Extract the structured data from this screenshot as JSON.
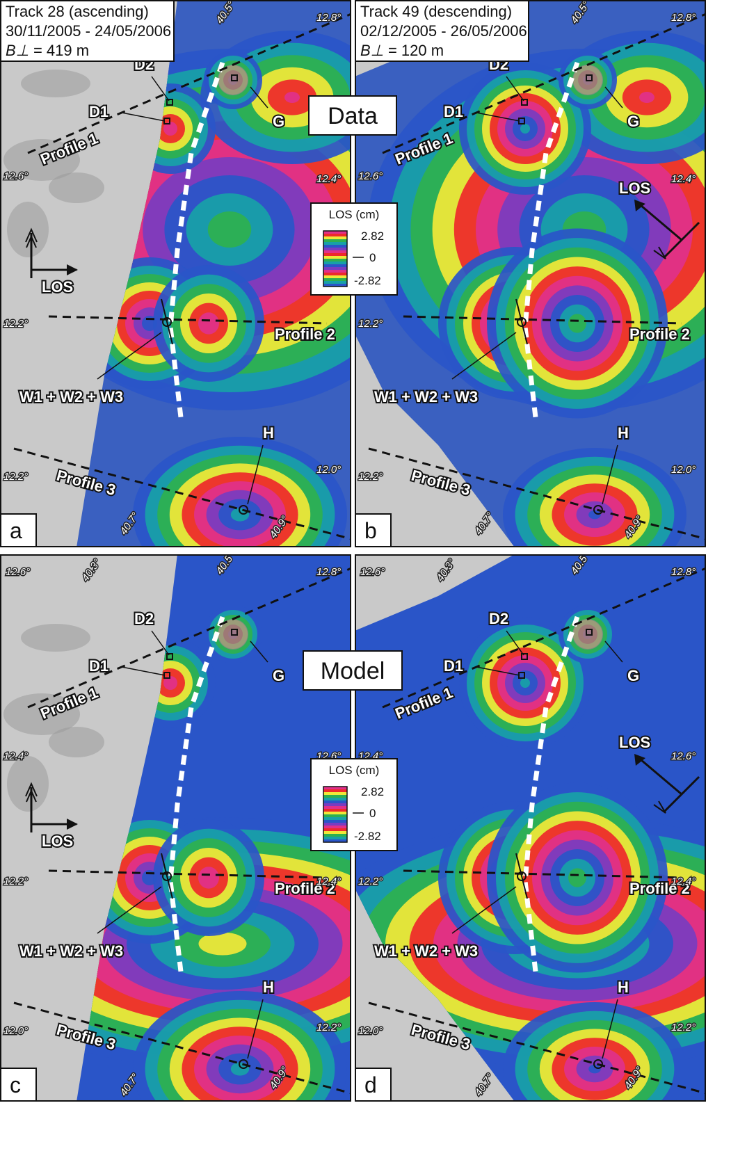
{
  "panels": [
    {
      "id": "a",
      "letter": "a",
      "header_lines": [
        "Track 28 (ascending)",
        "30/11/2005 - 24/05/2006",
        "= 419 m"
      ],
      "baseline_symbol": "B⊥",
      "center_label": "",
      "los_orientation": "ascending",
      "labels": {
        "d1": "D1",
        "d2": "D2",
        "g": "G",
        "h": "H",
        "w": "W1 + W2 + W3",
        "profile1": "Profile 1",
        "profile2": "Profile 2",
        "profile3": "Profile 3",
        "los": "LOS"
      },
      "ticks": [
        "40.5°",
        "12.8°",
        "12.6°",
        "12.4°",
        "12.2°",
        "12.0°",
        "12.2°",
        "40.7°",
        "40.9°"
      ]
    },
    {
      "id": "b",
      "letter": "b",
      "header_lines": [
        "Track 49 (descending)",
        "02/12/2005 - 26/05/2006",
        "= 120 m"
      ],
      "baseline_symbol": "B⊥",
      "center_label": "Data",
      "los_orientation": "descending",
      "labels": {
        "d1": "D1",
        "d2": "D2",
        "g": "G",
        "h": "H",
        "w": "W1 + W2 + W3",
        "profile1": "Profile 1",
        "profile2": "Profile 2",
        "profile3": "Profile 3",
        "los": "LOS"
      },
      "ticks": [
        "40.5°",
        "12.8°",
        "12.6°",
        "12.4°",
        "12.2°",
        "12.0°",
        "12.2°",
        "40.7°",
        "40.9°"
      ]
    },
    {
      "id": "c",
      "letter": "c",
      "header_lines": [],
      "baseline_symbol": "",
      "center_label": "",
      "los_orientation": "ascending",
      "labels": {
        "d1": "D1",
        "d2": "D2",
        "g": "G",
        "h": "H",
        "w": "W1 + W2 + W3",
        "profile1": "Profile 1",
        "profile2": "Profile 2",
        "profile3": "Profile 3",
        "los": "LOS"
      },
      "ticks": [
        "12.6°",
        "40.3°",
        "40.5°",
        "12.8°",
        "12.4°",
        "12.6°",
        "12.2°",
        "12.4°",
        "12.0°",
        "12.2°",
        "40.7°",
        "40.9°"
      ]
    },
    {
      "id": "d",
      "letter": "d",
      "header_lines": [],
      "baseline_symbol": "",
      "center_label": "Model",
      "los_orientation": "descending",
      "labels": {
        "d1": "D1",
        "d2": "D2",
        "g": "G",
        "h": "H",
        "w": "W1 + W2 + W3",
        "profile1": "Profile 1",
        "profile2": "Profile 2",
        "profile3": "Profile 3",
        "los": "LOS"
      },
      "ticks": [
        "12.6°",
        "40.3°",
        "40.5°",
        "12.8°",
        "12.4°",
        "12.6°",
        "12.2°",
        "12.4°",
        "12.0°",
        "12.2°",
        "40.7°",
        "40.9°"
      ]
    }
  ],
  "center_labels": {
    "top": "Data",
    "bottom": "Model"
  },
  "legend": {
    "title": "LOS (cm)",
    "max": "2.82",
    "mid": "0",
    "min": "-2.82"
  },
  "colors": {
    "fringe_cycle": [
      "#2a55c8",
      "#18a0a8",
      "#2eb050",
      "#f0e838",
      "#ee2a2a",
      "#e0308a",
      "#7a3cc0"
    ],
    "background_gray": "#c9c9c9",
    "far_field": "#2a55c8"
  }
}
